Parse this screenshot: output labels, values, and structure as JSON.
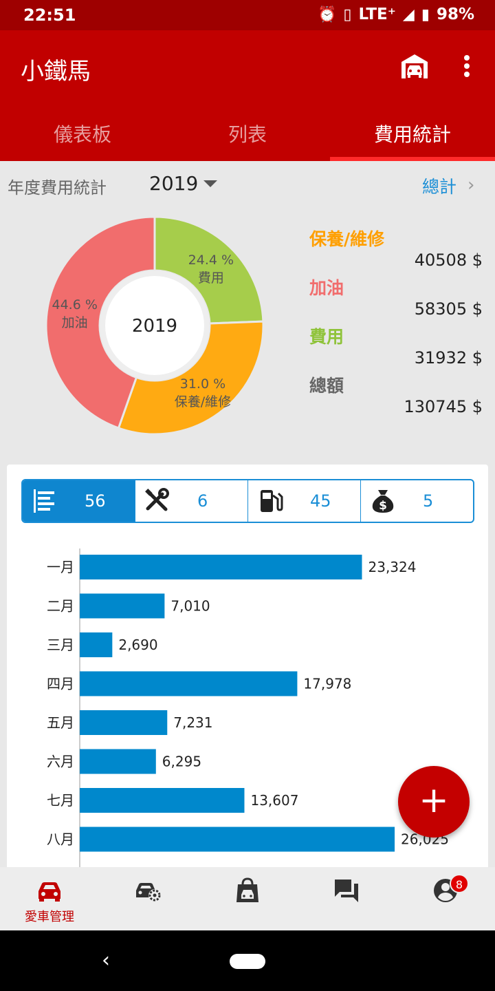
{
  "status": {
    "time": "22:51",
    "network": "LTE⁺",
    "battery": "98%"
  },
  "appbar": {
    "title": "小鐵馬"
  },
  "tabs": [
    {
      "label": "儀表板"
    },
    {
      "label": "列表"
    },
    {
      "label": "費用統計"
    }
  ],
  "year_row": {
    "label": "年度費用統計",
    "year": "2019",
    "total_link": "總計"
  },
  "donut": {
    "center": "2019",
    "slices": [
      {
        "name": "費用",
        "pct": "24.4 %",
        "value": 24.4,
        "color": "#a6cd4b"
      },
      {
        "name": "保養/維修",
        "pct": "31.0 %",
        "value": 31.0,
        "color": "#ffaa12"
      },
      {
        "name": "加油",
        "pct": "44.6 %",
        "value": 44.6,
        "color": "#f16d6d"
      }
    ]
  },
  "legend": [
    {
      "label": "保養/維修",
      "value": "40508 $",
      "color": "#ff9f00"
    },
    {
      "label": "加油",
      "value": "58305 $",
      "color": "#f16d6d"
    },
    {
      "label": "費用",
      "value": "31932 $",
      "color": "#8fc33a"
    },
    {
      "label": "總額",
      "value": "130745 $",
      "color": "#666666"
    }
  ],
  "segments": [
    {
      "icon": "list-icon",
      "count": "56"
    },
    {
      "icon": "tools-icon",
      "count": "6"
    },
    {
      "icon": "fuel-icon",
      "count": "45"
    },
    {
      "icon": "money-bag-icon",
      "count": "5"
    }
  ],
  "chart_data": {
    "type": "bar",
    "orientation": "horizontal",
    "categories": [
      "一月",
      "二月",
      "三月",
      "四月",
      "五月",
      "六月",
      "七月",
      "八月"
    ],
    "values": [
      23324,
      7010,
      2690,
      17978,
      7231,
      6295,
      13607,
      26025
    ],
    "value_labels": [
      "23,324",
      "7,010",
      "2,690",
      "17,978",
      "7,231",
      "6,295",
      "13,607",
      "26,025"
    ],
    "xlim": [
      0,
      27500
    ],
    "color": "#0088cc"
  },
  "fab": {
    "label": "+"
  },
  "bottom_nav": [
    {
      "icon": "car-icon",
      "label": "愛車管理"
    },
    {
      "icon": "car-settings-icon"
    },
    {
      "icon": "car-shop-icon"
    },
    {
      "icon": "chat-icon"
    },
    {
      "icon": "account-icon",
      "badge": "8"
    }
  ]
}
